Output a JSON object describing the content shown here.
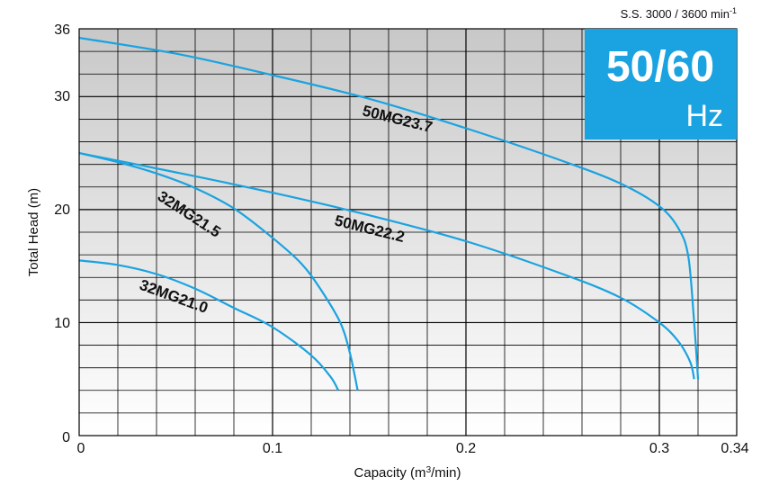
{
  "chart_data": {
    "type": "line",
    "xlabel": "Capacity (m3/min)",
    "ylabel": "Total Head (m)",
    "xlim": [
      0,
      0.34
    ],
    "ylim": [
      0,
      36
    ],
    "x_ticks": [
      "0",
      "0.1",
      "0.2",
      "0.3",
      "0.34"
    ],
    "y_ticks": [
      "0",
      "10",
      "20",
      "30",
      "36"
    ],
    "grid": true,
    "speed_label": "S.S. 3000 / 3600 min",
    "speed_label_exponent": "-1",
    "frequency_badge": {
      "big": "50/60",
      "unit": "Hz",
      "color": "#1aa3e0"
    },
    "line_color": "#1aa3e0",
    "series": [
      {
        "name": "50MG23.7",
        "x": [
          0,
          0.05,
          0.1,
          0.15,
          0.2,
          0.25,
          0.28,
          0.3,
          0.31,
          0.315,
          0.318,
          0.32
        ],
        "y": [
          35.2,
          33.8,
          31.9,
          29.8,
          27.2,
          24.3,
          22.3,
          20.3,
          18.3,
          15.8,
          10.0,
          5.0
        ]
      },
      {
        "name": "50MG22.2",
        "x": [
          0,
          0.05,
          0.1,
          0.15,
          0.2,
          0.25,
          0.28,
          0.3,
          0.31,
          0.316,
          0.318
        ],
        "y": [
          25.0,
          23.3,
          21.5,
          19.5,
          17.2,
          14.3,
          12.2,
          10.0,
          8.3,
          6.5,
          5.0
        ]
      },
      {
        "name": "32MG21.5",
        "x": [
          0,
          0.02,
          0.04,
          0.06,
          0.08,
          0.1,
          0.115,
          0.125,
          0.135,
          0.14,
          0.144
        ],
        "y": [
          25.0,
          24.2,
          23.2,
          21.9,
          20.1,
          17.5,
          15.2,
          12.9,
          10.0,
          7.3,
          4.0
        ]
      },
      {
        "name": "32MG21.0",
        "x": [
          0,
          0.02,
          0.04,
          0.06,
          0.08,
          0.1,
          0.12,
          0.13,
          0.134
        ],
        "y": [
          15.5,
          15.1,
          14.3,
          13.0,
          11.3,
          9.6,
          7.1,
          5.2,
          4.0
        ]
      }
    ],
    "annotations": [
      "50MG23.7",
      "50MG22.2",
      "32MG21.5",
      "32MG21.0"
    ]
  }
}
